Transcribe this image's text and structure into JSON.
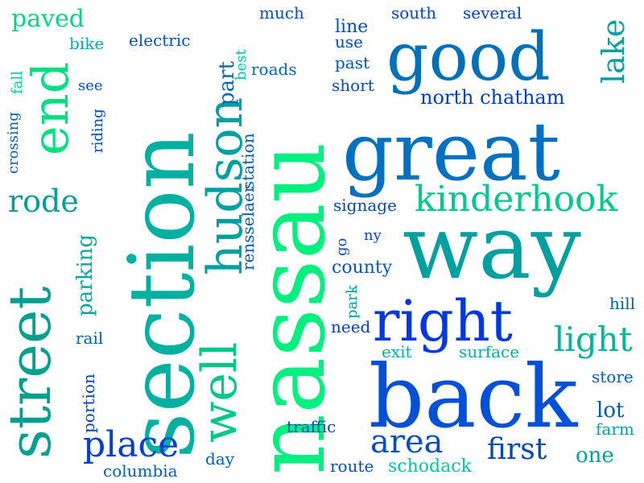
{
  "words": [
    {
      "text": "nassau",
      "color": "#00f080"
    },
    {
      "text": "section",
      "color": "#00b0a0"
    },
    {
      "text": "great",
      "color": "#0070c0"
    },
    {
      "text": "way",
      "color": "#00a0a0"
    },
    {
      "text": "back",
      "color": "#0050d8"
    },
    {
      "text": "good",
      "color": "#0070b8"
    },
    {
      "text": "street",
      "color": "#00a090"
    },
    {
      "text": "hudson",
      "color": "#00a0a0"
    },
    {
      "text": "well",
      "color": "#00c888"
    },
    {
      "text": "right",
      "color": "#0038e0"
    },
    {
      "text": "end",
      "color": "#00e080"
    },
    {
      "text": "kinderhook",
      "color": "#00c890"
    },
    {
      "text": "place",
      "color": "#0040d0"
    },
    {
      "text": "light",
      "color": "#00b898"
    },
    {
      "text": "area",
      "color": "#0050c0"
    },
    {
      "text": "first",
      "color": "#0048b8"
    },
    {
      "text": "rode",
      "color": "#00a098"
    },
    {
      "text": "lake",
      "color": "#00a0a0"
    },
    {
      "text": "paved",
      "color": "#00d880"
    },
    {
      "text": "north chatham",
      "color": "#0040c0"
    },
    {
      "text": "parking",
      "color": "#00a8a0"
    },
    {
      "text": "part",
      "color": "#0068b0"
    },
    {
      "text": "lot",
      "color": "#0058b8"
    },
    {
      "text": "one",
      "color": "#00a0a0"
    },
    {
      "text": "schodack",
      "color": "#00c8a0"
    },
    {
      "text": "county",
      "color": "#0058c0"
    },
    {
      "text": "signage",
      "color": "#0048c0"
    },
    {
      "text": "much",
      "color": "#0050c8"
    },
    {
      "text": "south",
      "color": "#0048c8"
    },
    {
      "text": "several",
      "color": "#0040c8"
    },
    {
      "text": "line",
      "color": "#0050c0"
    },
    {
      "text": "use",
      "color": "#0050b8"
    },
    {
      "text": "past",
      "color": "#0058b8"
    },
    {
      "text": "short",
      "color": "#0048c8"
    },
    {
      "text": "roads",
      "color": "#0068b8"
    },
    {
      "text": "electric",
      "color": "#0050c0"
    },
    {
      "text": "bike",
      "color": "#00b0a8"
    },
    {
      "text": "best",
      "color": "#00c8a8"
    },
    {
      "text": "fall",
      "color": "#00d098"
    },
    {
      "text": "see",
      "color": "#0050c8"
    },
    {
      "text": "riding",
      "color": "#0048c0"
    },
    {
      "text": "crossing",
      "color": "#0060b8"
    },
    {
      "text": "rensselaer",
      "color": "#0058b8"
    },
    {
      "text": "station",
      "color": "#0060b0"
    },
    {
      "text": "go",
      "color": "#0050c8"
    },
    {
      "text": "ny",
      "color": "#0048c8"
    },
    {
      "text": "park",
      "color": "#00a0a0"
    },
    {
      "text": "need",
      "color": "#0040d0"
    },
    {
      "text": "exit",
      "color": "#00b0a8"
    },
    {
      "text": "surface",
      "color": "#00b0a8"
    },
    {
      "text": "hill",
      "color": "#0060a8"
    },
    {
      "text": "store",
      "color": "#0060b8"
    },
    {
      "text": "farm",
      "color": "#00a0a8"
    },
    {
      "text": "rail",
      "color": "#0060b0"
    },
    {
      "text": "portion",
      "color": "#0048c0"
    },
    {
      "text": "traffic",
      "color": "#0048c8"
    },
    {
      "text": "day",
      "color": "#0060b0"
    },
    {
      "text": "route",
      "color": "#0050c0"
    },
    {
      "text": "columbia",
      "color": "#0060b8"
    }
  ]
}
